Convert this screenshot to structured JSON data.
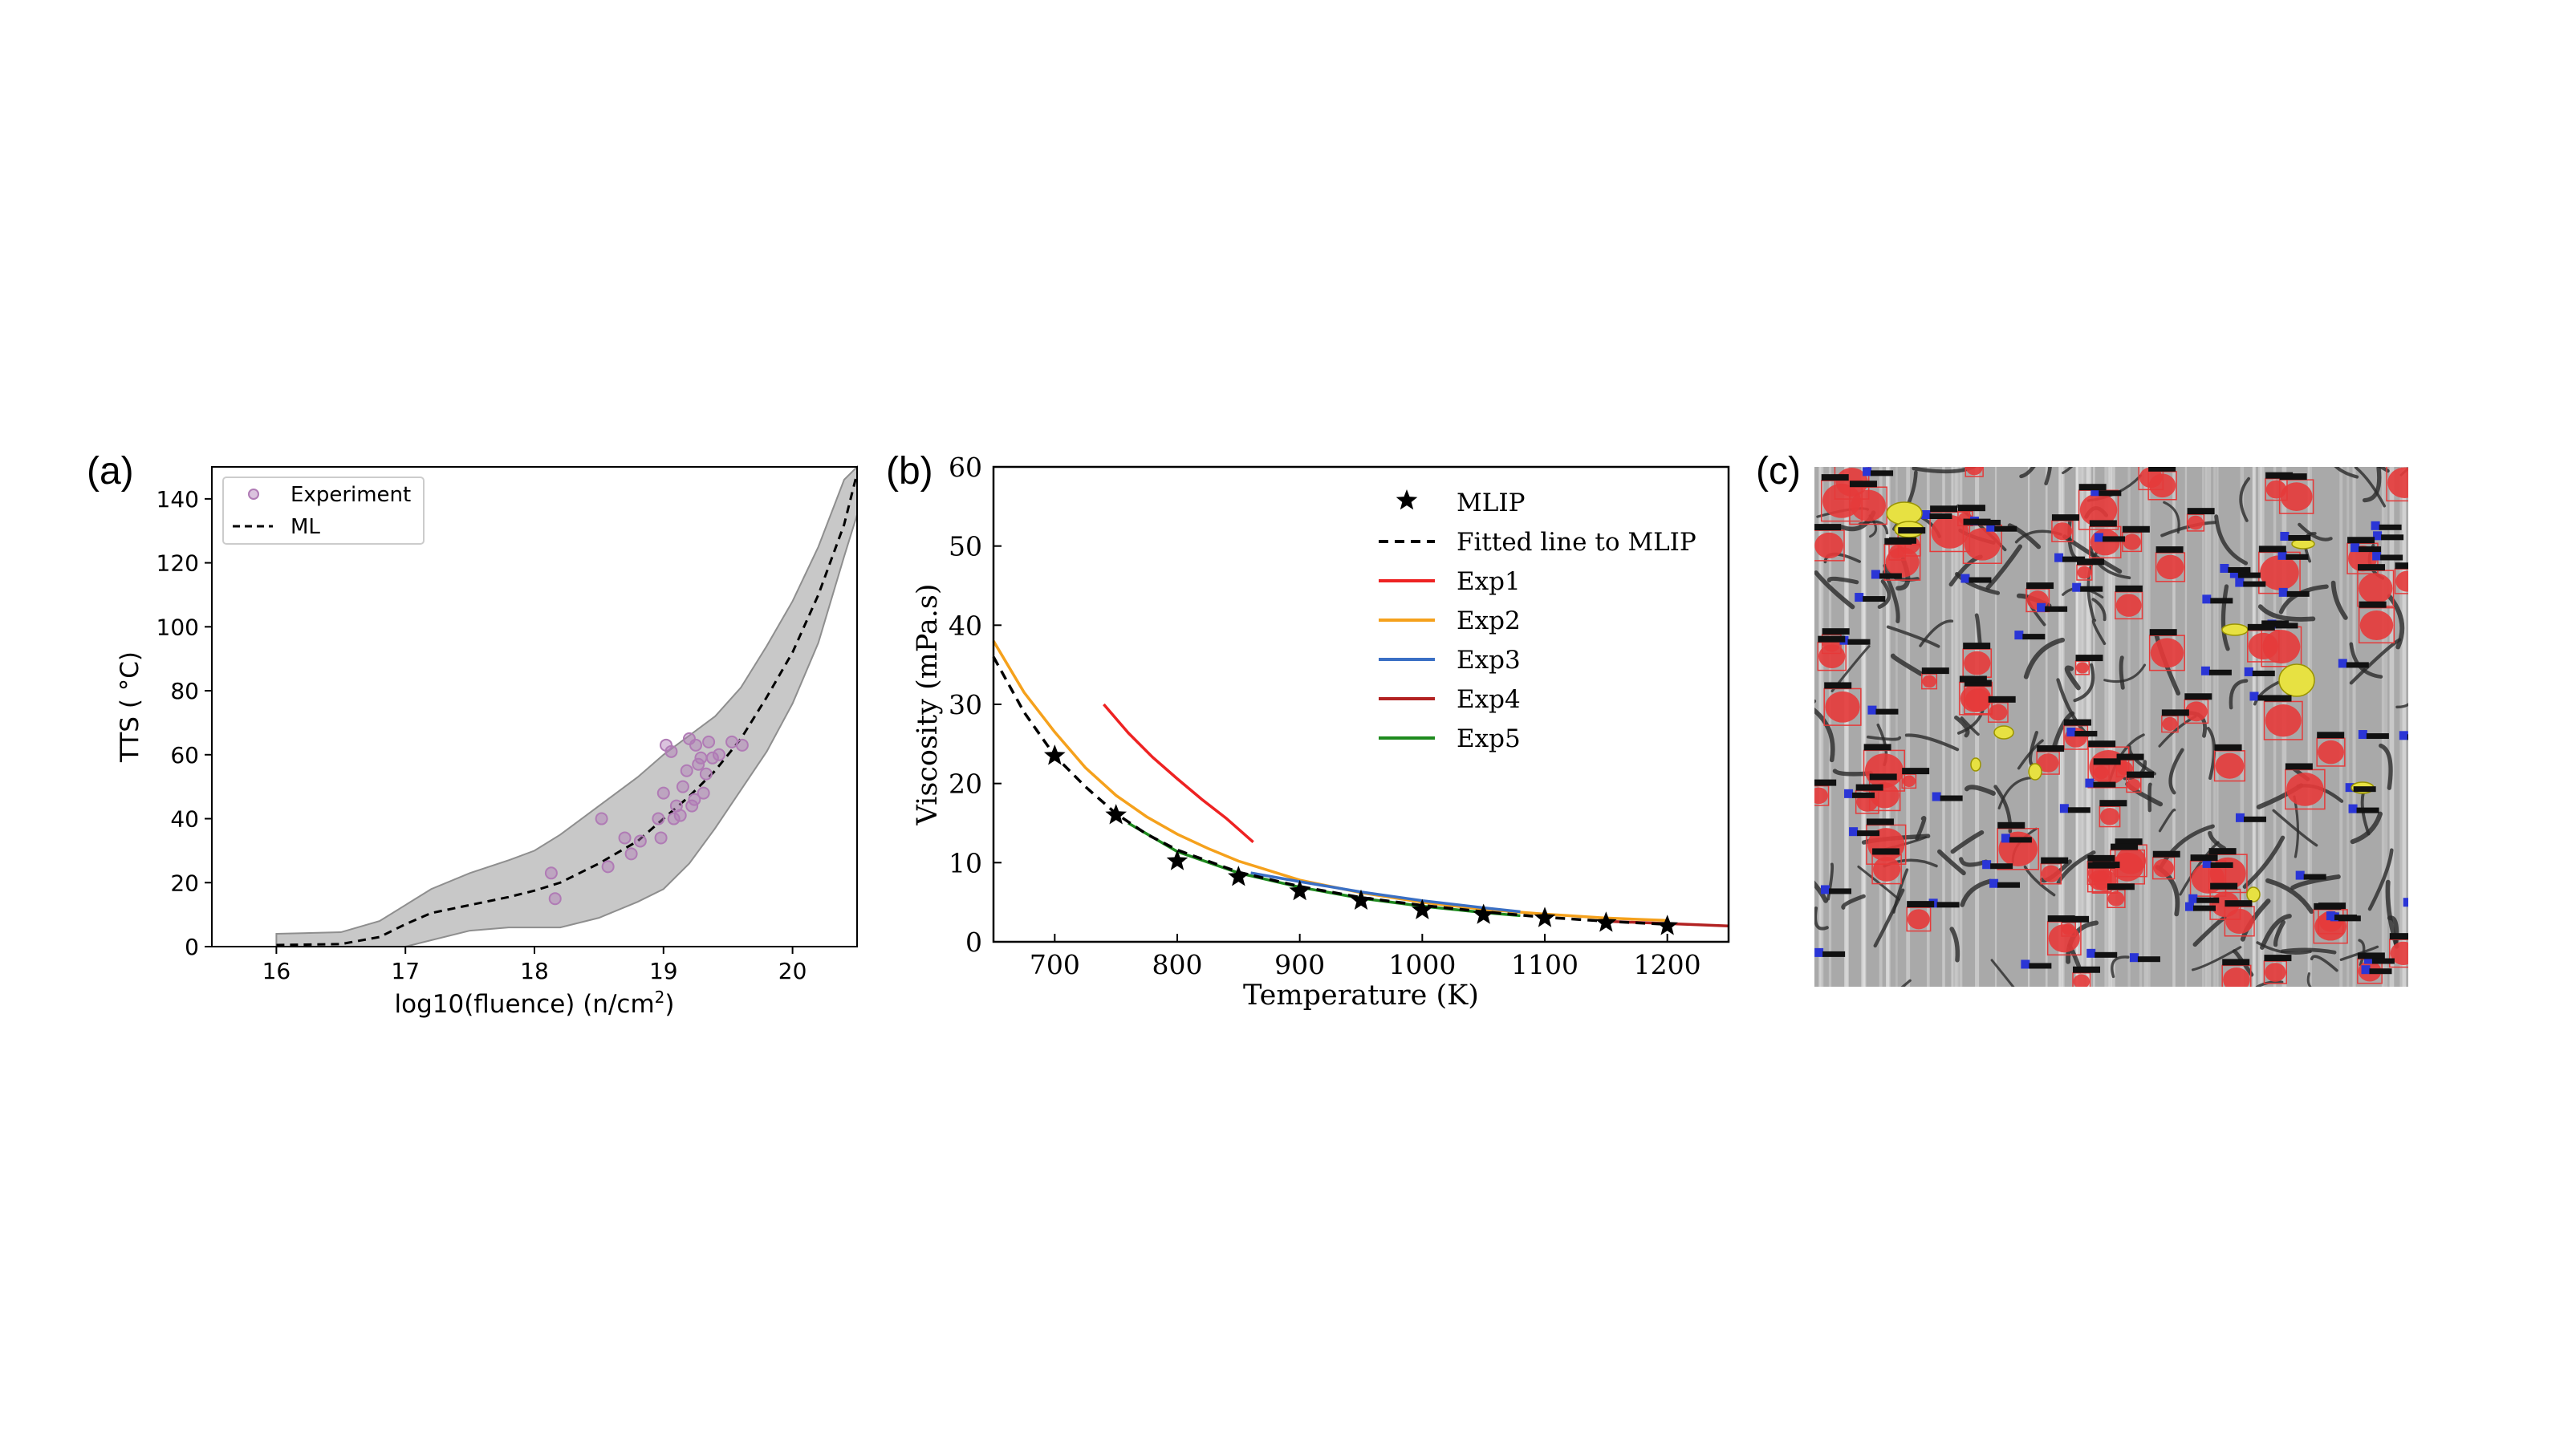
{
  "figure": {
    "panel_labels": [
      "(a)",
      "(b)",
      "(c)"
    ]
  },
  "chart_data": [
    {
      "type": "scatter",
      "panel": "(a)",
      "xlabel": "log10(fluence) (n/cm",
      "xlabel_sup": "2",
      "xlabel_end": ")",
      "ylabel": "TTS ( °C)",
      "xlim": [
        15.5,
        20.5
      ],
      "ylim": [
        0,
        150
      ],
      "xticks": [
        16,
        17,
        18,
        19,
        20
      ],
      "yticks": [
        0,
        20,
        40,
        60,
        80,
        100,
        120,
        140
      ],
      "grid": false,
      "legend": "top-left",
      "colors": {
        "experiment": "#b07bb5",
        "ml": "#000000",
        "band": "#c8c8c8"
      },
      "series": [
        {
          "name": "Experiment",
          "kind": "scatter",
          "points": [
            [
              18.13,
              23
            ],
            [
              18.16,
              15
            ],
            [
              18.52,
              40
            ],
            [
              18.57,
              25
            ],
            [
              18.7,
              34
            ],
            [
              18.75,
              29
            ],
            [
              18.82,
              33
            ],
            [
              18.96,
              40
            ],
            [
              18.98,
              34
            ],
            [
              19.0,
              48
            ],
            [
              19.02,
              63
            ],
            [
              19.06,
              61
            ],
            [
              19.08,
              40
            ],
            [
              19.1,
              44
            ],
            [
              19.13,
              41
            ],
            [
              19.15,
              50
            ],
            [
              19.18,
              55
            ],
            [
              19.2,
              65
            ],
            [
              19.22,
              44
            ],
            [
              19.24,
              46
            ],
            [
              19.25,
              63
            ],
            [
              19.27,
              57
            ],
            [
              19.29,
              59
            ],
            [
              19.31,
              48
            ],
            [
              19.33,
              54
            ],
            [
              19.35,
              64
            ],
            [
              19.38,
              59
            ],
            [
              19.43,
              60
            ],
            [
              19.53,
              64
            ],
            [
              19.61,
              63
            ]
          ]
        },
        {
          "name": "ML",
          "kind": "dashed-line",
          "points": [
            [
              16.0,
              0.5
            ],
            [
              16.5,
              0.8
            ],
            [
              16.8,
              3
            ],
            [
              17.0,
              7
            ],
            [
              17.2,
              10.5
            ],
            [
              17.5,
              13
            ],
            [
              17.8,
              15.5
            ],
            [
              18.0,
              17.5
            ],
            [
              18.2,
              20
            ],
            [
              18.5,
              26
            ],
            [
              18.8,
              33
            ],
            [
              19.0,
              40
            ],
            [
              19.2,
              47
            ],
            [
              19.4,
              55
            ],
            [
              19.6,
              65
            ],
            [
              19.8,
              78
            ],
            [
              20.0,
              92
            ],
            [
              20.2,
              110
            ],
            [
              20.4,
              132
            ],
            [
              20.5,
              148
            ]
          ]
        }
      ],
      "band": {
        "upper": [
          [
            16.0,
            4
          ],
          [
            16.5,
            4.5
          ],
          [
            16.8,
            8
          ],
          [
            17.0,
            13
          ],
          [
            17.2,
            18
          ],
          [
            17.5,
            23
          ],
          [
            17.8,
            27
          ],
          [
            18.0,
            30
          ],
          [
            18.2,
            35
          ],
          [
            18.5,
            44
          ],
          [
            18.8,
            53
          ],
          [
            19.0,
            60
          ],
          [
            19.2,
            66
          ],
          [
            19.4,
            72
          ],
          [
            19.6,
            81
          ],
          [
            19.8,
            94
          ],
          [
            20.0,
            108
          ],
          [
            20.2,
            125
          ],
          [
            20.4,
            146
          ],
          [
            20.5,
            155
          ]
        ],
        "lower": [
          [
            16.0,
            0
          ],
          [
            16.5,
            0
          ],
          [
            16.8,
            0
          ],
          [
            17.0,
            0
          ],
          [
            17.2,
            2
          ],
          [
            17.5,
            5
          ],
          [
            17.8,
            6
          ],
          [
            18.0,
            6
          ],
          [
            18.2,
            6
          ],
          [
            18.5,
            9
          ],
          [
            18.8,
            14
          ],
          [
            19.0,
            18
          ],
          [
            19.2,
            26
          ],
          [
            19.4,
            37
          ],
          [
            19.6,
            49
          ],
          [
            19.8,
            61
          ],
          [
            20.0,
            76
          ],
          [
            20.2,
            95
          ],
          [
            20.4,
            122
          ],
          [
            20.5,
            135
          ]
        ]
      }
    },
    {
      "type": "line",
      "panel": "(b)",
      "xlabel": "Temperature (K)",
      "ylabel": "Viscosity (mPa.s)",
      "xlim": [
        650,
        1250
      ],
      "ylim": [
        0,
        60
      ],
      "xticks": [
        700,
        800,
        900,
        1000,
        1100,
        1200
      ],
      "yticks": [
        0,
        10,
        20,
        30,
        40,
        50,
        60
      ],
      "grid": false,
      "legend": "top-right",
      "series": [
        {
          "name": "MLIP",
          "kind": "star",
          "color": "#000000",
          "points": [
            [
              700,
              23.5
            ],
            [
              750,
              16
            ],
            [
              800,
              10.2
            ],
            [
              850,
              8.2
            ],
            [
              900,
              6.4
            ],
            [
              950,
              5.2
            ],
            [
              1000,
              4.0
            ],
            [
              1050,
              3.4
            ],
            [
              1100,
              3.0
            ],
            [
              1150,
              2.4
            ],
            [
              1200,
              2.0
            ]
          ]
        },
        {
          "name": "Fitted line to MLIP",
          "kind": "dashed-line",
          "color": "#000000",
          "points": [
            [
              650,
              36
            ],
            [
              675,
              29
            ],
            [
              700,
              23.5
            ],
            [
              725,
              19.6
            ],
            [
              750,
              16.2
            ],
            [
              775,
              13.6
            ],
            [
              800,
              11.6
            ],
            [
              850,
              8.8
            ],
            [
              900,
              7.0
            ],
            [
              950,
              5.6
            ],
            [
              1000,
              4.6
            ],
            [
              1050,
              3.8
            ],
            [
              1100,
              3.1
            ],
            [
              1150,
              2.6
            ],
            [
              1200,
              2.2
            ]
          ]
        },
        {
          "name": "Exp1",
          "kind": "line",
          "color": "#ee2222",
          "points": [
            [
              740,
              30
            ],
            [
              760,
              26.4
            ],
            [
              780,
              23.3
            ],
            [
              800,
              20.6
            ],
            [
              820,
              18.0
            ],
            [
              840,
              15.6
            ],
            [
              862,
              12.6
            ]
          ]
        },
        {
          "name": "Exp2",
          "kind": "line",
          "color": "#f5a11c",
          "points": [
            [
              650,
              38
            ],
            [
              675,
              31.5
            ],
            [
              700,
              26.5
            ],
            [
              725,
              22
            ],
            [
              750,
              18.5
            ],
            [
              775,
              15.8
            ],
            [
              800,
              13.6
            ],
            [
              825,
              11.8
            ],
            [
              850,
              10.2
            ],
            [
              900,
              7.8
            ],
            [
              950,
              6.2
            ],
            [
              1000,
              5.0
            ],
            [
              1050,
              4.1
            ],
            [
              1100,
              3.5
            ],
            [
              1150,
              3.0
            ],
            [
              1200,
              2.7
            ]
          ]
        },
        {
          "name": "Exp3",
          "kind": "line",
          "color": "#3a6fc4",
          "points": [
            [
              860,
              8.7
            ],
            [
              900,
              7.6
            ],
            [
              950,
              6.3
            ],
            [
              1000,
              5.2
            ],
            [
              1050,
              4.3
            ],
            [
              1080,
              3.8
            ]
          ]
        },
        {
          "name": "Exp4",
          "kind": "line",
          "color": "#b22222",
          "points": [
            [
              1150,
              2.6
            ],
            [
              1200,
              2.3
            ],
            [
              1250,
              2.0
            ]
          ]
        },
        {
          "name": "Exp5",
          "kind": "line",
          "color": "#1e8a1e",
          "points": [
            [
              760,
              15
            ],
            [
              800,
              11.4
            ],
            [
              850,
              8.7
            ],
            [
              900,
              6.9
            ],
            [
              950,
              5.5
            ],
            [
              1000,
              4.5
            ],
            [
              1050,
              3.7
            ],
            [
              1080,
              3.3
            ]
          ]
        }
      ]
    }
  ],
  "micrograph": {
    "panel": "(c)",
    "colors": {
      "background": "#a9a9a9",
      "streak": "#e8e8e8",
      "dislocation": "#2b2b2b",
      "red": "#e53a3a",
      "blue": "#2a35d6",
      "yellow": "#e7e142"
    }
  }
}
